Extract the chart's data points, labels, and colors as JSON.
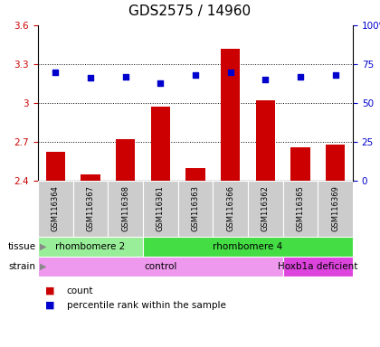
{
  "title": "GDS2575 / 14960",
  "samples": [
    "GSM116364",
    "GSM116367",
    "GSM116368",
    "GSM116361",
    "GSM116363",
    "GSM116366",
    "GSM116362",
    "GSM116365",
    "GSM116369"
  ],
  "counts": [
    2.62,
    2.45,
    2.72,
    2.97,
    2.5,
    3.42,
    3.02,
    2.66,
    2.68
  ],
  "percentile_ranks": [
    70,
    66,
    67,
    63,
    68,
    70,
    65,
    67,
    68
  ],
  "ylim": [
    2.4,
    3.6
  ],
  "yticks": [
    2.4,
    2.7,
    3.0,
    3.3,
    3.6
  ],
  "ytick_labels": [
    "2.4",
    "2.7",
    "3",
    "3.3",
    "3.6"
  ],
  "right_yticks": [
    0,
    25,
    50,
    75,
    100
  ],
  "right_ytick_labels": [
    "0",
    "25",
    "50",
    "75",
    "100%"
  ],
  "bar_color": "#cc0000",
  "dot_color": "#0000cc",
  "tissue_labels": [
    {
      "label": "rhombomere 2",
      "start": 0,
      "end": 3,
      "color": "#99ee99"
    },
    {
      "label": "rhombomere 4",
      "start": 3,
      "end": 9,
      "color": "#44dd44"
    }
  ],
  "strain_labels": [
    {
      "label": "control",
      "start": 0,
      "end": 7,
      "color": "#ee99ee"
    },
    {
      "label": "Hoxb1a deficient",
      "start": 7,
      "end": 9,
      "color": "#dd44dd"
    }
  ],
  "legend_count_label": "count",
  "legend_pct_label": "percentile rank within the sample",
  "title_fontsize": 11,
  "axis_label_color_left": "#cc0000",
  "axis_label_color_right": "#0000cc",
  "bg_color": "#ffffff",
  "sample_bg_color": "#cccccc"
}
